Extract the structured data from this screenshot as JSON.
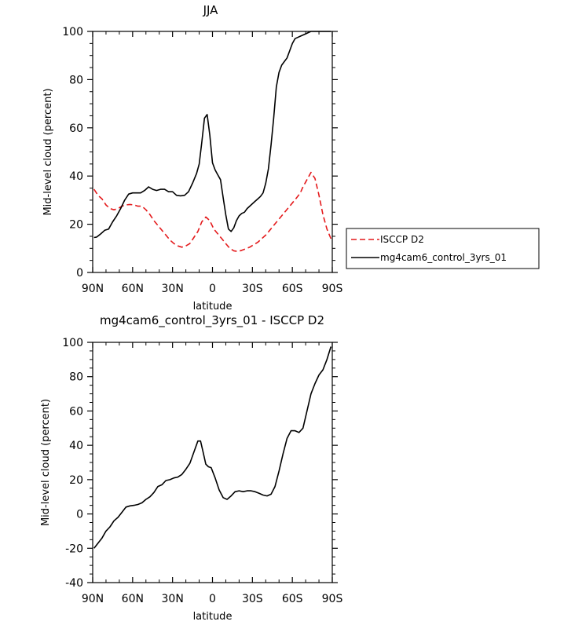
{
  "chart_data": [
    {
      "type": "line",
      "title": "JJA",
      "xlabel": "latitude",
      "ylabel": "Mid-level cloud (percent)",
      "xlim": [
        90,
        -90
      ],
      "ylim": [
        0,
        100
      ],
      "x_ticks": [
        90,
        60,
        30,
        0,
        -30,
        -60,
        -90
      ],
      "x_tick_labels": [
        "90N",
        "60N",
        "30N",
        "0",
        "30S",
        "60S",
        "90S"
      ],
      "y_ticks": [
        0,
        20,
        40,
        60,
        80,
        100
      ],
      "y_tick_labels": [
        "0",
        "20",
        "40",
        "60",
        "80",
        "100"
      ],
      "legend": "right, outside plot",
      "series": [
        {
          "name": "ISCCP D2",
          "color": "#e41a1c",
          "dash": "dashed",
          "x": [
            89,
            86,
            83,
            80,
            77,
            74,
            71,
            68,
            65,
            62,
            59,
            56,
            53,
            50,
            47,
            44,
            41,
            38,
            35,
            32,
            29,
            26,
            23,
            20,
            17,
            14,
            11,
            8,
            5,
            2,
            -1,
            -4,
            -7,
            -10,
            -13,
            -16,
            -19,
            -22,
            -25,
            -28,
            -31,
            -34,
            -37,
            -40,
            -43,
            -46,
            -49,
            -52,
            -55,
            -58,
            -61,
            -64,
            -66,
            -68,
            -71,
            -74,
            -77,
            -80,
            -83,
            -86,
            -89
          ],
          "y": [
            34.5,
            32,
            30.5,
            28,
            26.5,
            26,
            26.5,
            27.5,
            28,
            28.2,
            28,
            27.5,
            27.5,
            26,
            24,
            21.5,
            19.5,
            17.5,
            15.5,
            13.5,
            12,
            11,
            10.5,
            11,
            12,
            14.5,
            17,
            21,
            23,
            21.5,
            18,
            16,
            14,
            12,
            10,
            9,
            8.7,
            9.2,
            9.8,
            10.5,
            11.5,
            12.5,
            14,
            15.5,
            17.5,
            19.5,
            21.5,
            23.5,
            25.5,
            27.5,
            29.5,
            31.5,
            33,
            35.5,
            38.5,
            41.5,
            39,
            32,
            24,
            18,
            14
          ]
        },
        {
          "name": "mg4cam6_control_3yrs_01",
          "color": "#000000",
          "dash": "solid",
          "x": [
            89,
            87,
            84,
            81,
            78,
            75,
            72,
            69,
            66,
            63,
            60,
            57,
            54,
            51,
            48,
            45,
            42,
            39,
            36,
            33,
            30,
            27,
            24,
            21,
            18,
            15,
            12,
            10,
            8,
            6,
            4,
            2,
            0,
            -2,
            -4,
            -6,
            -8,
            -10,
            -12,
            -14,
            -16,
            -18,
            -20,
            -22,
            -24,
            -26,
            -28,
            -30,
            -32,
            -34,
            -36,
            -38,
            -40,
            -42,
            -44,
            -46,
            -48,
            -50,
            -52,
            -54,
            -56,
            -58,
            -60,
            -62,
            -64,
            -66,
            -68,
            -70,
            -72,
            -74,
            -76,
            -78,
            -80,
            -82,
            -84,
            -86,
            -88,
            -89
          ],
          "y": [
            14.5,
            14.7,
            16,
            17.5,
            18,
            21,
            23.5,
            26.5,
            30,
            32.5,
            33,
            33,
            33,
            34,
            35.5,
            34.5,
            34,
            34.5,
            34.5,
            33.5,
            33.5,
            32,
            31.8,
            32,
            33.5,
            37,
            41,
            45,
            54,
            64,
            65.5,
            57,
            45.5,
            42.5,
            40.5,
            38.5,
            31,
            24,
            18,
            17,
            18.5,
            21.5,
            23.5,
            24.5,
            25,
            26.5,
            27.5,
            28.5,
            29.5,
            30.5,
            31.5,
            33,
            37,
            43,
            53,
            64,
            77,
            83,
            86,
            87.5,
            89,
            92,
            95,
            97,
            97.5,
            98,
            98.5,
            99,
            99.5,
            100,
            100,
            100,
            100,
            100,
            100,
            100,
            100,
            100
          ]
        }
      ]
    },
    {
      "type": "line",
      "title": "mg4cam6_control_3yrs_01 - ISCCP D2",
      "xlabel": "latitude",
      "ylabel": "Mid-level cloud (percent)",
      "xlim": [
        90,
        -90
      ],
      "ylim": [
        -40,
        100
      ],
      "x_ticks": [
        90,
        60,
        30,
        0,
        -30,
        -60,
        -90
      ],
      "x_tick_labels": [
        "90N",
        "60N",
        "30N",
        "0",
        "30S",
        "60S",
        "90S"
      ],
      "y_ticks": [
        -40,
        -20,
        0,
        20,
        40,
        60,
        80,
        100
      ],
      "y_tick_labels": [
        "-40",
        "-20",
        "0",
        "20",
        "40",
        "60",
        "80",
        "100"
      ],
      "series": [
        {
          "name": "",
          "color": "#000000",
          "dash": "solid",
          "x": [
            89,
            86,
            83,
            80,
            77,
            74,
            71,
            68,
            65,
            62,
            59,
            56,
            53,
            50,
            47,
            44,
            41,
            38,
            35,
            32,
            29,
            26,
            23,
            20,
            17,
            14,
            11,
            9,
            7,
            5,
            3,
            1,
            -2,
            -5,
            -8,
            -11,
            -14,
            -17,
            -20,
            -23,
            -26,
            -29,
            -32,
            -35,
            -38,
            -41,
            -44,
            -47,
            -50,
            -53,
            -56,
            -59,
            -62,
            -65,
            -68,
            -71,
            -74,
            -77,
            -80,
            -83,
            -86,
            -89
          ],
          "y": [
            -20,
            -17,
            -14,
            -10,
            -7.5,
            -4,
            -2,
            1,
            4,
            4.7,
            5,
            5.5,
            6.5,
            8.5,
            10,
            12.5,
            16,
            17,
            19.5,
            20,
            21,
            21.5,
            23,
            26,
            29.5,
            36,
            42.5,
            42.5,
            36,
            29,
            27.5,
            27,
            21,
            14,
            9.5,
            8.5,
            10.5,
            13,
            13.5,
            13,
            13.5,
            13.5,
            13,
            12,
            11,
            10.5,
            11.5,
            16,
            25,
            35,
            44,
            48.5,
            48.5,
            47.5,
            50,
            60,
            70,
            76,
            81,
            84,
            90,
            97.5
          ]
        }
      ]
    }
  ]
}
